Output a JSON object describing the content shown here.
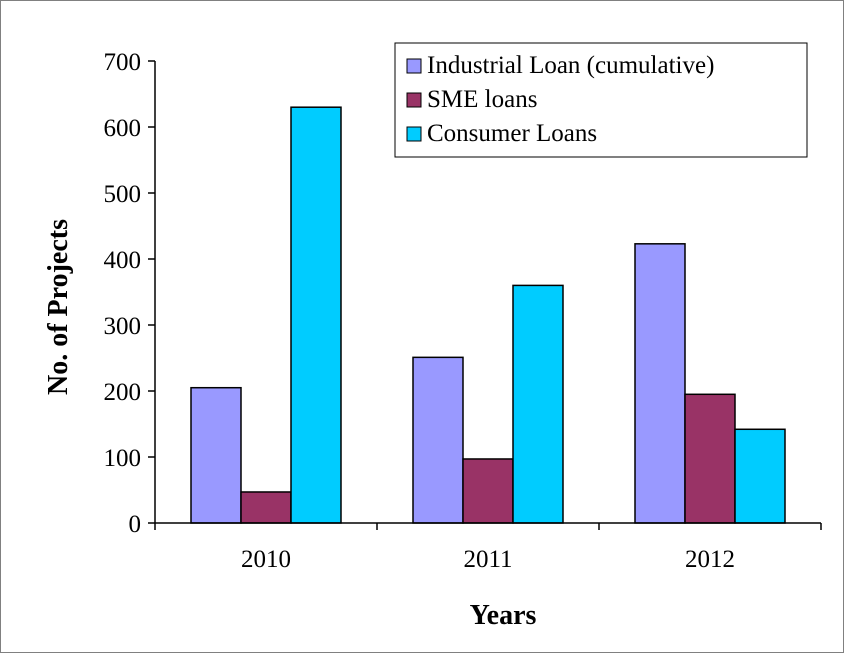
{
  "chart_data": {
    "type": "bar",
    "title": "",
    "xlabel": "Years",
    "ylabel": "No. of Projects",
    "categories": [
      "2010",
      "2011",
      "2012"
    ],
    "series": [
      {
        "name": "Industrial Loan (cumulative)",
        "values": [
          205,
          251,
          423
        ],
        "color": "#9999FF"
      },
      {
        "name": "SME loans",
        "values": [
          47,
          97,
          195
        ],
        "color": "#993366"
      },
      {
        "name": "Consumer Loans",
        "values": [
          630,
          360,
          142
        ],
        "color": "#00CCFF"
      }
    ],
    "ylim": [
      0,
      700
    ],
    "yticks": [
      0,
      100,
      200,
      300,
      400,
      500,
      600,
      700
    ],
    "grid": false,
    "legend_position": "top-right"
  }
}
